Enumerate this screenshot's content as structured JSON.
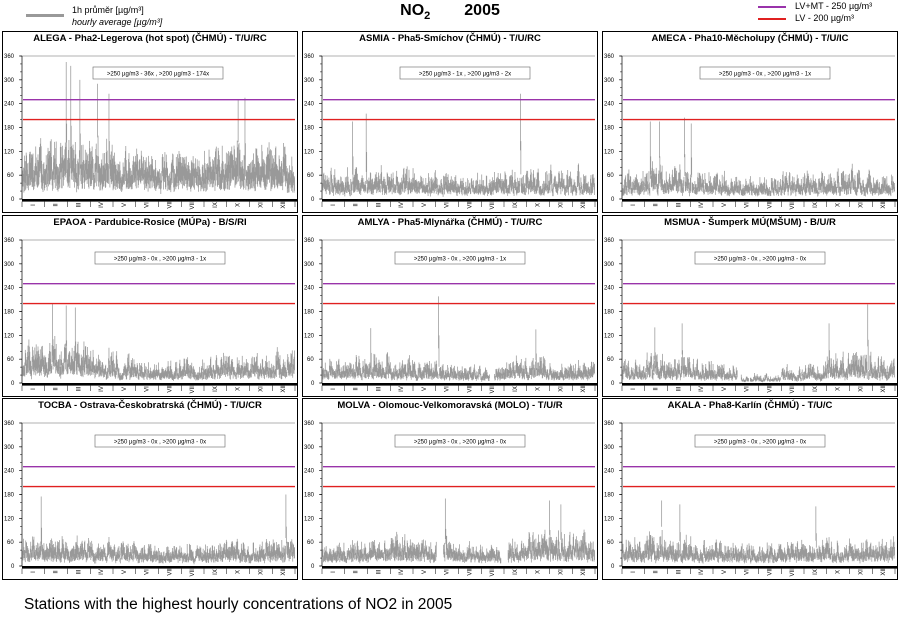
{
  "header": {
    "title_main": "NO",
    "title_sub": "2",
    "title_year": "2005",
    "legend_left": {
      "line1": "1h průměr [µg/m³]",
      "line2": "hourly average [µg/m³]",
      "color": "#999999"
    },
    "legend_right": [
      {
        "label": "LV+MT - 250 µg/m³",
        "color": "#9933aa"
      },
      {
        "label": "LV  - 200 µg/m³",
        "color": "#e02020"
      }
    ]
  },
  "caption": "Stations with the highest hourly concentrations of NO2 in 2005",
  "chart_data": [
    {
      "type": "line",
      "title": "ALEGA - Pha2-Legerova (hot spot) (ČHMÚ) - T/U/RC",
      "exceedance": ">250 µg/m3 - 36x  ,  >200 µg/m3 - 174x",
      "ylim": [
        0,
        360
      ],
      "yticks": [
        0,
        60,
        120,
        180,
        240,
        300,
        360
      ],
      "xcategories": [
        "I",
        "II",
        "III",
        "IV",
        "V",
        "VI",
        "VII",
        "VIII",
        "IX",
        "X",
        "XI",
        "XII"
      ],
      "thresholds": [
        250,
        200
      ],
      "profile": {
        "base": 85,
        "amp": 95,
        "monthly_level": [
          1.0,
          1.15,
          1.2,
          1.05,
          1.0,
          0.95,
          0.9,
          0.85,
          1.0,
          1.05,
          1.1,
          1.0
        ],
        "peaks": [
          {
            "month": 1.9,
            "value": 345
          },
          {
            "month": 2.1,
            "value": 335
          },
          {
            "month": 2.5,
            "value": 300
          },
          {
            "month": 3.3,
            "value": 290
          },
          {
            "month": 3.8,
            "value": 265
          },
          {
            "month": 9.5,
            "value": 250
          },
          {
            "month": 9.8,
            "value": 255
          }
        ],
        "gaps": []
      }
    },
    {
      "type": "line",
      "title": "ASMIA - Pha5-Smíchov (ČHMÚ) - T/U/RC",
      "exceedance": ">250 µg/m3 - 1x  ,  >200 µg/m3 - 2x",
      "ylim": [
        0,
        360
      ],
      "yticks": [
        0,
        60,
        120,
        180,
        240,
        300,
        360
      ],
      "xcategories": [
        "I",
        "II",
        "III",
        "IV",
        "V",
        "VI",
        "VII",
        "VIII",
        "IX",
        "X",
        "XI",
        "XII"
      ],
      "thresholds": [
        250,
        200
      ],
      "profile": {
        "base": 40,
        "amp": 70,
        "monthly_level": [
          1.0,
          1.0,
          1.1,
          1.0,
          0.9,
          0.85,
          0.8,
          0.9,
          1.0,
          1.0,
          1.0,
          1.0
        ],
        "peaks": [
          {
            "month": 1.3,
            "value": 195
          },
          {
            "month": 1.9,
            "value": 215
          },
          {
            "month": 8.7,
            "value": 265
          }
        ],
        "gaps": []
      }
    },
    {
      "type": "line",
      "title": "AMECA - Pha10-Měcholupy (ČHMÚ) - T/U/IC",
      "exceedance": ">250 µg/m3 - 0x  ,  >200 µg/m3 - 1x",
      "ylim": [
        0,
        360
      ],
      "yticks": [
        0,
        60,
        120,
        180,
        240,
        300,
        360
      ],
      "xcategories": [
        "I",
        "II",
        "III",
        "IV",
        "V",
        "VI",
        "VII",
        "VIII",
        "IX",
        "X",
        "XI",
        "XII"
      ],
      "thresholds": [
        250,
        200
      ],
      "profile": {
        "base": 35,
        "amp": 70,
        "monthly_level": [
          1.0,
          1.1,
          1.15,
          1.0,
          0.9,
          0.85,
          0.8,
          0.85,
          1.0,
          1.0,
          1.0,
          0.9
        ],
        "peaks": [
          {
            "month": 1.2,
            "value": 195
          },
          {
            "month": 1.6,
            "value": 195
          },
          {
            "month": 2.7,
            "value": 205
          },
          {
            "month": 3.0,
            "value": 190
          }
        ],
        "gaps": []
      }
    },
    {
      "type": "line",
      "title": "EPAOA - Pardubice-Rosice (MÚPa) - B/S/RI",
      "exceedance": ">250 µg/m3 - 0x  ,  >200 µg/m3 - 1x",
      "ylim": [
        0,
        360
      ],
      "yticks": [
        0,
        60,
        120,
        180,
        240,
        300,
        360
      ],
      "xcategories": [
        "I",
        "II",
        "III",
        "IV",
        "V",
        "VI",
        "VII",
        "VIII",
        "IX",
        "X",
        "XI",
        "XII"
      ],
      "thresholds": [
        250,
        200
      ],
      "profile": {
        "base": 40,
        "amp": 80,
        "monthly_level": [
          1.2,
          1.35,
          1.3,
          1.0,
          0.85,
          0.7,
          0.7,
          0.75,
          0.8,
          0.85,
          0.9,
          0.9
        ],
        "peaks": [
          {
            "month": 1.3,
            "value": 200
          },
          {
            "month": 1.9,
            "value": 195
          },
          {
            "month": 2.3,
            "value": 190
          }
        ],
        "gaps": []
      }
    },
    {
      "type": "line",
      "title": "AMLYA - Pha5-Mlynářka (ČHMÚ) - T/U/RC",
      "exceedance": ">250 µg/m3 - 0x  ,  >200 µg/m3 - 1x",
      "ylim": [
        0,
        360
      ],
      "yticks": [
        0,
        60,
        120,
        180,
        240,
        300,
        360
      ],
      "xcategories": [
        "I",
        "II",
        "III",
        "IV",
        "V",
        "VI",
        "VII",
        "VIII",
        "IX",
        "X",
        "XI",
        "XII"
      ],
      "thresholds": [
        250,
        200
      ],
      "profile": {
        "base": 30,
        "amp": 60,
        "monthly_level": [
          1.0,
          1.1,
          1.2,
          1.0,
          0.9,
          0.8,
          0.7,
          0.7,
          1.0,
          1.05,
          0.9,
          0.9
        ],
        "peaks": [
          {
            "month": 5.1,
            "value": 218
          },
          {
            "month": 2.1,
            "value": 138
          },
          {
            "month": 9.4,
            "value": 135
          }
        ],
        "gaps": [
          [
            7.35,
            7.55
          ]
        ]
      }
    },
    {
      "type": "line",
      "title": "MSMUA - Šumperk MÚ(MŠUM) - B/U/R",
      "exceedance": ">250 µg/m3 - 0x  ,  >200 µg/m3 - 0x",
      "ylim": [
        0,
        360
      ],
      "yticks": [
        0,
        60,
        120,
        180,
        240,
        300,
        360
      ],
      "xcategories": [
        "I",
        "II",
        "III",
        "IV",
        "V",
        "VI",
        "VII",
        "VIII",
        "IX",
        "X",
        "XI",
        "XII"
      ],
      "thresholds": [
        250,
        200
      ],
      "profile": {
        "base": 25,
        "amp": 55,
        "monthly_level": [
          1.0,
          1.3,
          1.2,
          1.0,
          0.85,
          0.45,
          0.4,
          0.7,
          1.0,
          1.35,
          1.5,
          1.1
        ],
        "peaks": [
          {
            "month": 10.8,
            "value": 198
          },
          {
            "month": 1.4,
            "value": 140
          },
          {
            "month": 2.6,
            "value": 150
          },
          {
            "month": 9.1,
            "value": 150
          }
        ],
        "gaps": [
          [
            5.05,
            5.2
          ],
          [
            5.55,
            5.6
          ],
          [
            6.95,
            7.0
          ]
        ]
      }
    },
    {
      "type": "line",
      "title": "TOCBA - Ostrava-Českobratrská (ČHMÚ) - T/U/CR",
      "exceedance": ">250 µg/m3 - 0x  ,  >200 µg/m3 - 0x",
      "ylim": [
        0,
        360
      ],
      "yticks": [
        0,
        60,
        120,
        180,
        240,
        300,
        360
      ],
      "xcategories": [
        "I",
        "II",
        "III",
        "IV",
        "V",
        "VI",
        "VII",
        "VIII",
        "IX",
        "X",
        "XI",
        "XII"
      ],
      "thresholds": [
        250,
        200
      ],
      "profile": {
        "base": 35,
        "amp": 55,
        "monthly_level": [
          1.1,
          1.2,
          1.1,
          1.0,
          0.9,
          0.9,
          0.85,
          0.9,
          1.0,
          1.0,
          1.0,
          1.1
        ],
        "peaks": [
          {
            "month": 0.8,
            "value": 175
          },
          {
            "month": 11.6,
            "value": 180
          }
        ],
        "gaps": []
      }
    },
    {
      "type": "line",
      "title": "MOLVA - Olomouc-Velkomoravská (MOLO) - T/U/R",
      "exceedance": ">250 µg/m3 - 0x  ,  >200 µg/m3 - 0x",
      "ylim": [
        0,
        360
      ],
      "yticks": [
        0,
        60,
        120,
        180,
        240,
        300,
        360
      ],
      "xcategories": [
        "I",
        "II",
        "III",
        "IV",
        "V",
        "VI",
        "VII",
        "VIII",
        "IX",
        "X",
        "XI",
        "XII"
      ],
      "thresholds": [
        250,
        200
      ],
      "profile": {
        "base": 35,
        "amp": 60,
        "monthly_level": [
          0.9,
          1.0,
          1.1,
          1.15,
          1.1,
          1.0,
          0.85,
          0.8,
          1.1,
          1.25,
          1.3,
          1.2
        ],
        "peaks": [
          {
            "month": 5.4,
            "value": 170
          },
          {
            "month": 10.0,
            "value": 165
          },
          {
            "month": 10.5,
            "value": 155
          }
        ],
        "gaps": [
          [
            5.0,
            5.3
          ],
          [
            7.85,
            8.15
          ]
        ]
      }
    },
    {
      "type": "line",
      "title": "AKALA - Pha8-Karlín (ČHMÚ) - T/U/C",
      "exceedance": ">250 µg/m3 - 0x  ,  >200 µg/m3 - 0x",
      "ylim": [
        0,
        360
      ],
      "yticks": [
        0,
        60,
        120,
        180,
        240,
        300,
        360
      ],
      "xcategories": [
        "I",
        "II",
        "III",
        "IV",
        "V",
        "VI",
        "VII",
        "VIII",
        "IX",
        "X",
        "XI",
        "XII"
      ],
      "thresholds": [
        250,
        200
      ],
      "profile": {
        "base": 35,
        "amp": 60,
        "monthly_level": [
          1.1,
          1.2,
          1.15,
          1.0,
          0.95,
          0.9,
          0.85,
          0.9,
          1.0,
          1.0,
          1.0,
          0.95
        ],
        "peaks": [
          {
            "month": 1.7,
            "value": 165
          },
          {
            "month": 2.5,
            "value": 155
          },
          {
            "month": 8.5,
            "value": 150
          }
        ],
        "gaps": []
      }
    }
  ]
}
